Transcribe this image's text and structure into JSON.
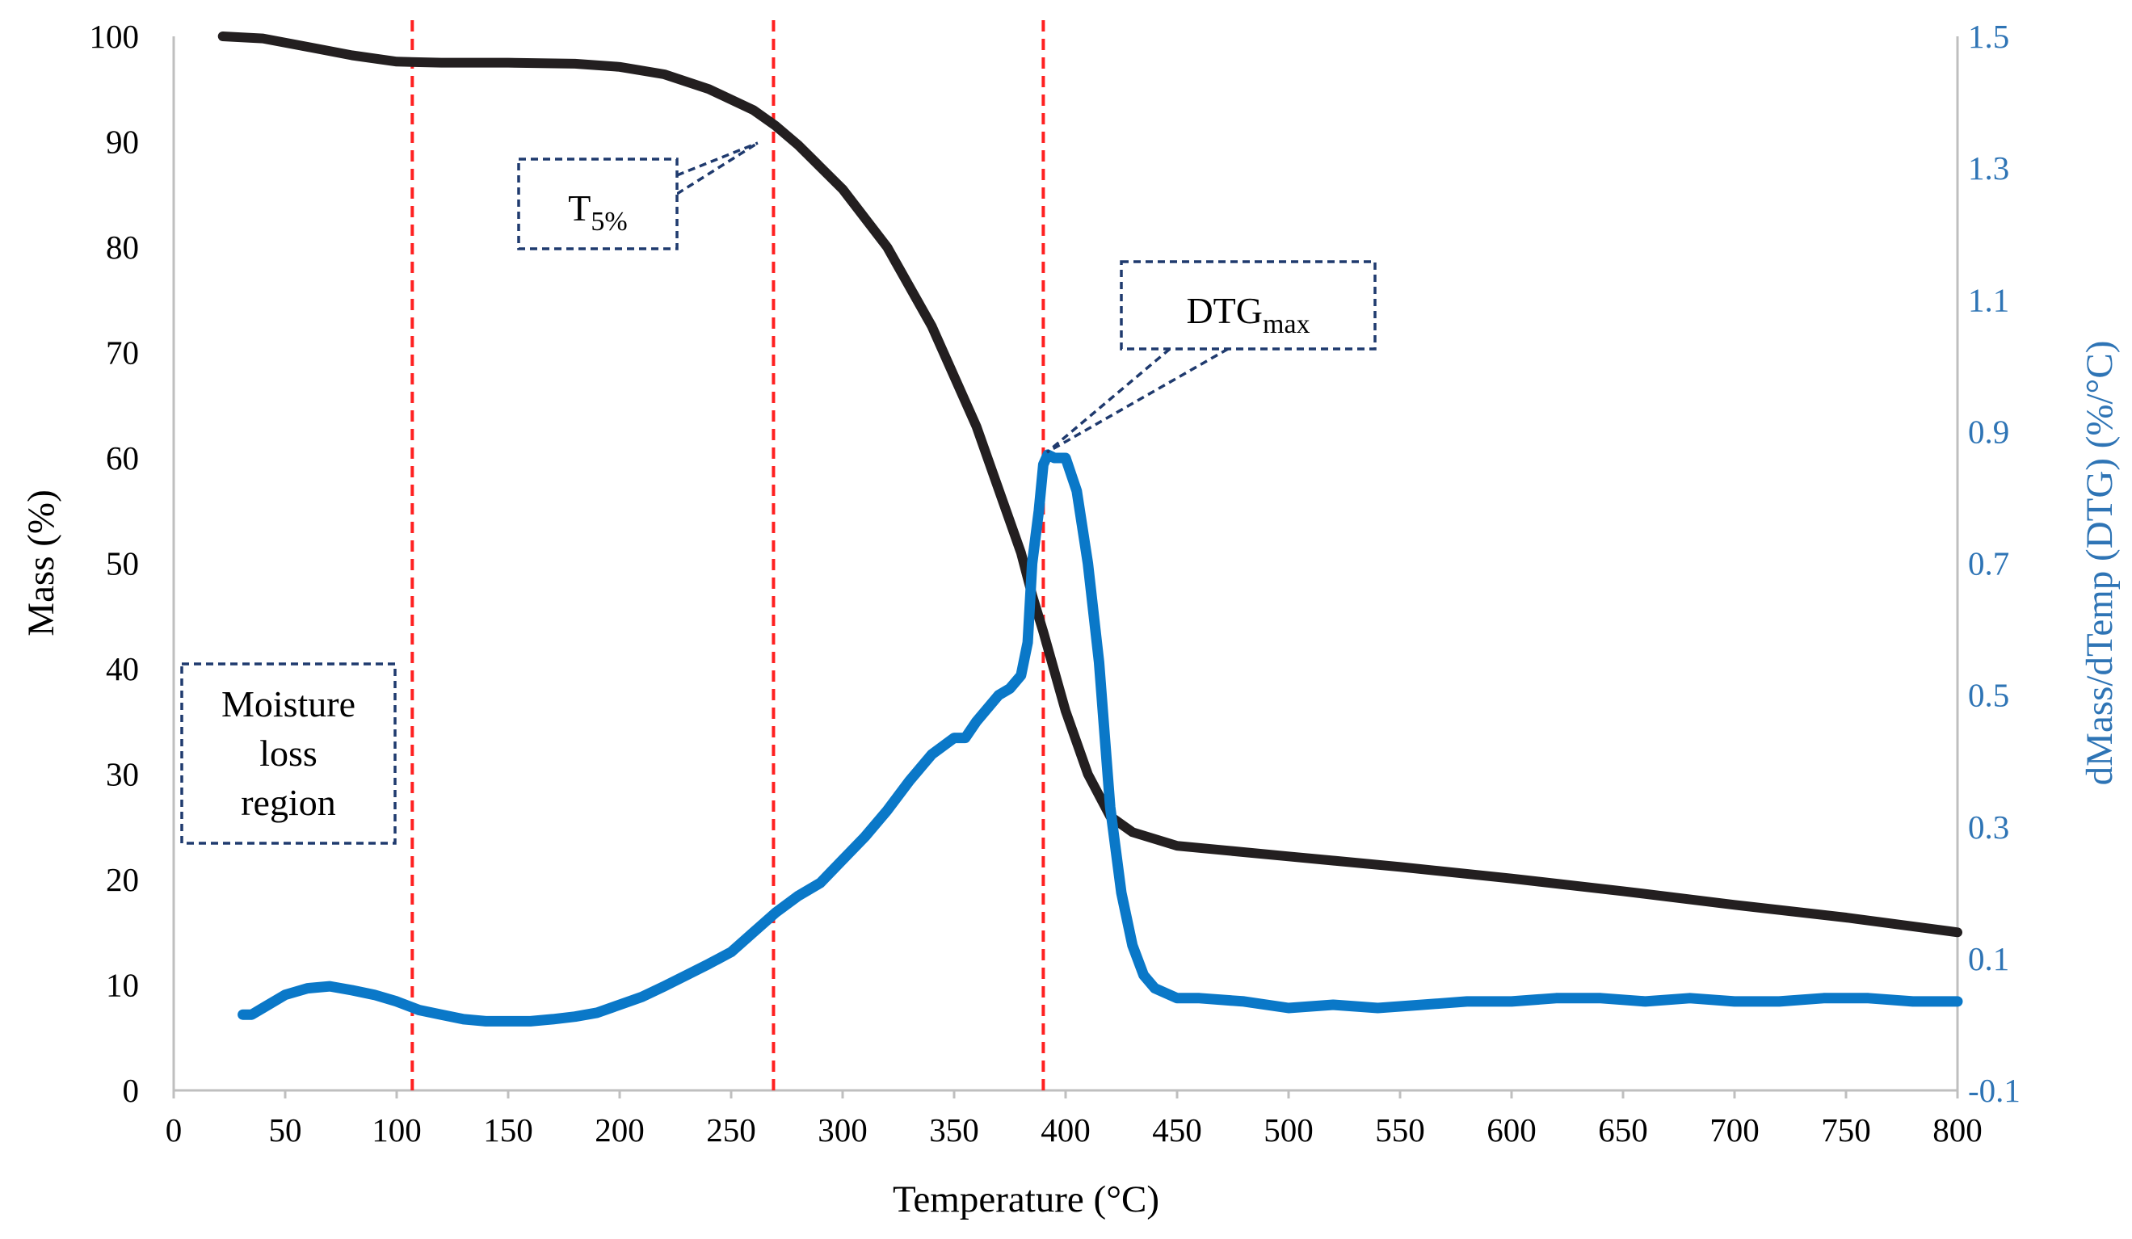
{
  "chart_data": {
    "type": "line",
    "title": "",
    "xlabel": "Temperature (°C)",
    "ylabel": "Mass (%)",
    "y2label": "dMass/dTemp (DTG) (%/°C)",
    "xlim": [
      0,
      800
    ],
    "ylim": [
      0,
      100
    ],
    "y2lim": [
      -0.1,
      1.5
    ],
    "xticks": [
      "0",
      "50",
      "100",
      "150",
      "200",
      "250",
      "300",
      "350",
      "400",
      "450",
      "500",
      "550",
      "600",
      "650",
      "700",
      "750",
      "800"
    ],
    "yticks": [
      "0",
      "10",
      "20",
      "30",
      "40",
      "50",
      "60",
      "70",
      "80",
      "90",
      "100"
    ],
    "y2ticks": [
      "-0.1",
      "0.1",
      "0.3",
      "0.5",
      "0.7",
      "0.9",
      "1.1",
      "1.3",
      "1.5"
    ],
    "grid": false,
    "series": [
      {
        "name": "Mass",
        "axis": "left",
        "color": "#231f20",
        "x": [
          22,
          40,
          60,
          80,
          100,
          120,
          150,
          180,
          200,
          220,
          240,
          260,
          270,
          280,
          300,
          320,
          340,
          360,
          380,
          385,
          390,
          400,
          410,
          420,
          430,
          450,
          500,
          550,
          600,
          650,
          700,
          750,
          800
        ],
        "y": [
          100,
          99.8,
          99.0,
          98.2,
          97.6,
          97.5,
          97.5,
          97.4,
          97.1,
          96.4,
          95.0,
          93.0,
          91.5,
          89.7,
          85.5,
          80.0,
          72.5,
          63.0,
          51.0,
          47.0,
          43.5,
          36.0,
          30.0,
          26.0,
          24.5,
          23.2,
          22.2,
          21.2,
          20.1,
          18.9,
          17.6,
          16.4,
          15.0
        ]
      },
      {
        "name": "DTG",
        "axis": "right",
        "color": "#0a78c8",
        "x": [
          31,
          35,
          40,
          50,
          60,
          70,
          80,
          90,
          100,
          110,
          120,
          130,
          140,
          150,
          160,
          170,
          180,
          190,
          200,
          210,
          220,
          230,
          240,
          250,
          260,
          270,
          280,
          290,
          300,
          310,
          320,
          330,
          340,
          350,
          355,
          360,
          370,
          375,
          380,
          383,
          385,
          388,
          390,
          392,
          395,
          400,
          405,
          410,
          415,
          420,
          425,
          430,
          435,
          440,
          450,
          460,
          480,
          500,
          520,
          540,
          560,
          580,
          600,
          620,
          640,
          660,
          680,
          700,
          720,
          740,
          760,
          780,
          800
        ],
        "y": [
          0.015,
          0.015,
          0.025,
          0.045,
          0.055,
          0.058,
          0.052,
          0.045,
          0.035,
          0.022,
          0.015,
          0.008,
          0.005,
          0.005,
          0.005,
          0.008,
          0.012,
          0.018,
          0.03,
          0.042,
          0.058,
          0.075,
          0.092,
          0.11,
          0.14,
          0.17,
          0.195,
          0.215,
          0.25,
          0.285,
          0.325,
          0.37,
          0.41,
          0.435,
          0.435,
          0.46,
          0.5,
          0.51,
          0.53,
          0.58,
          0.7,
          0.78,
          0.85,
          0.865,
          0.86,
          0.86,
          0.81,
          0.7,
          0.55,
          0.33,
          0.2,
          0.12,
          0.075,
          0.055,
          0.04,
          0.04,
          0.035,
          0.025,
          0.03,
          0.025,
          0.03,
          0.035,
          0.035,
          0.04,
          0.04,
          0.035,
          0.04,
          0.035,
          0.035,
          0.04,
          0.04,
          0.035,
          0.035
        ]
      }
    ],
    "vlines": [
      107,
      269,
      390
    ],
    "annotations": [
      {
        "text": "Moisture",
        "group": "moisture"
      },
      {
        "text": "loss",
        "group": "moisture"
      },
      {
        "text": "region",
        "group": "moisture"
      },
      {
        "text": "T",
        "sub": "5%",
        "group": "t5"
      },
      {
        "text": "DTG",
        "sub": "max",
        "group": "dtgmax"
      }
    ]
  }
}
